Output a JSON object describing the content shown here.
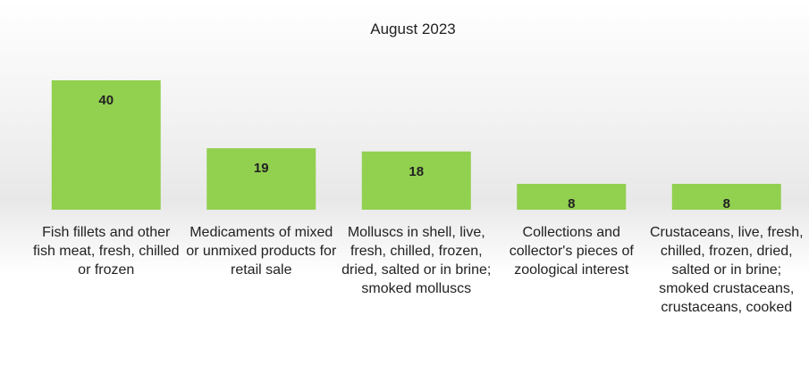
{
  "chart_data": {
    "type": "bar",
    "title": "August 2023",
    "categories": [
      "Fish fillets and other fish meat, fresh, chilled or frozen",
      "Medicaments of mixed or unmixed products for retail sale",
      "Molluscs in shell, live, fresh, chilled, frozen, dried, salted or in brine; smoked molluscs",
      "Collections and collector's pieces of zoological interest",
      "Crustaceans, live, fresh, chilled, frozen, dried, salted or in brine; smoked crustaceans, crustaceans, cooked"
    ],
    "values": [
      40,
      19,
      18,
      8,
      8
    ],
    "color": "#92d050"
  }
}
